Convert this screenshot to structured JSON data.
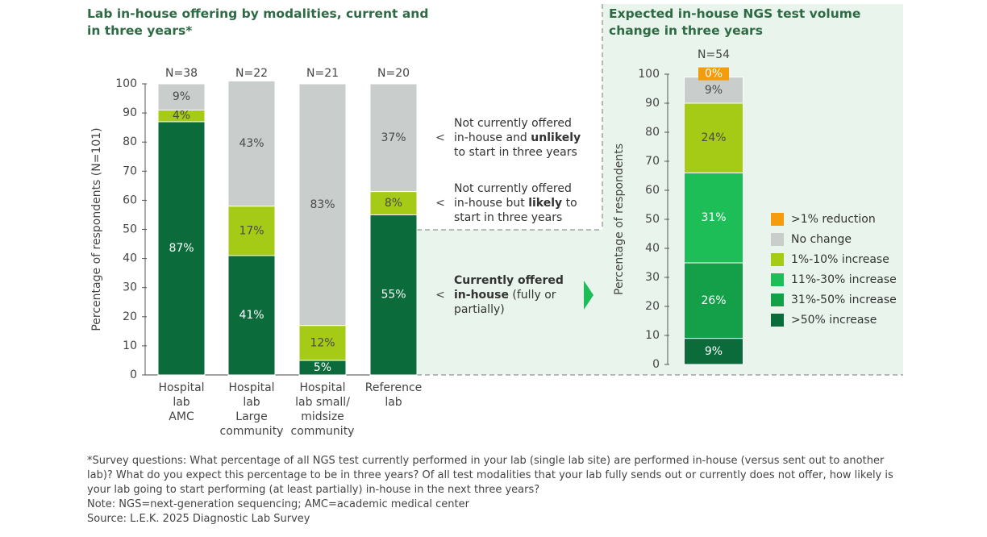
{
  "chart_data": [
    {
      "type": "stacked_bar",
      "title": "Lab in-house offering by modalities, current and in three years*",
      "ylabel": "Percentage of respondents (N=101)",
      "n_labels": [
        "N=38",
        "N=22",
        "N=21",
        "N=20"
      ],
      "categories": [
        [
          "Hospital",
          "lab",
          "AMC"
        ],
        [
          "Hospital",
          "lab",
          "Large",
          "community"
        ],
        [
          "Hospital",
          "lab small/",
          "midsize",
          "community"
        ],
        [
          "Reference",
          "lab"
        ]
      ],
      "ylim": [
        0,
        100
      ],
      "yticks": [
        0,
        10,
        20,
        30,
        40,
        50,
        60,
        70,
        80,
        90,
        100
      ],
      "series": [
        {
          "color": "#0b6b3a",
          "label_color": "#ffffff",
          "values": [
            87,
            41,
            5,
            55
          ],
          "value_labels": [
            "87%",
            "41%",
            "5%",
            "55%"
          ],
          "label_lines": [
            [
              {
                "text": "Currently offered",
                "bold": true
              }
            ],
            [
              {
                "text": "in-house",
                "bold": true
              },
              {
                "text": " (fully or"
              }
            ],
            [
              {
                "text": "partially)"
              }
            ]
          ]
        },
        {
          "color": "#a6cb17",
          "label_color": "#4a4a4a",
          "values": [
            4,
            17,
            12,
            8
          ],
          "value_labels": [
            "4%",
            "17%",
            "12%",
            "8%"
          ],
          "label_lines": [
            [
              {
                "text": "Not currently offered"
              }
            ],
            [
              {
                "text": "in-house but "
              },
              {
                "text": "likely",
                "bold": true
              },
              {
                "text": " to"
              }
            ],
            [
              {
                "text": "start in three years"
              }
            ]
          ]
        },
        {
          "color": "#c9cdcc",
          "label_color": "#4a4a4a",
          "values": [
            9,
            43,
            83,
            37
          ],
          "value_labels": [
            "9%",
            "43%",
            "83%",
            "37%"
          ],
          "label_lines": [
            [
              {
                "text": "Not currently offered"
              }
            ],
            [
              {
                "text": "in-house and "
              },
              {
                "text": "unlikely",
                "bold": true
              }
            ],
            [
              {
                "text": "to start in three years"
              }
            ]
          ]
        }
      ]
    },
    {
      "type": "stacked_bar",
      "title": "Expected in-house NGS test volume change in three years",
      "ylabel": "Percentage of respondents",
      "n_labels": [
        "N=54"
      ],
      "categories": [
        null
      ],
      "ylim": [
        0,
        100
      ],
      "yticks": [
        0,
        10,
        20,
        30,
        40,
        50,
        60,
        70,
        80,
        90,
        100
      ],
      "series": [
        {
          "name": ">50% increase",
          "color": "#0b6b3a",
          "label_color": "#ffffff",
          "values": [
            9
          ],
          "value_labels": [
            "9%"
          ]
        },
        {
          "name": "31%-50% increase",
          "color": "#14a049",
          "label_color": "#ffffff",
          "values": [
            26
          ],
          "value_labels": [
            "26%"
          ]
        },
        {
          "name": "11%-30% increase",
          "color": "#1dbe58",
          "label_color": "#ffffff",
          "values": [
            31
          ],
          "value_labels": [
            "31%"
          ]
        },
        {
          "name": "1%-10% increase",
          "color": "#a6cb17",
          "label_color": "#4a4a4a",
          "values": [
            24
          ],
          "value_labels": [
            "24%"
          ]
        },
        {
          "name": "No change",
          "color": "#c9cdcc",
          "label_color": "#4a4a4a",
          "values": [
            9
          ],
          "value_labels": [
            "9%"
          ]
        },
        {
          "name": ">1% reduction",
          "color": "#f59c0d",
          "label_color": "#ffffff",
          "values": [
            0
          ],
          "value_labels": [
            "0%"
          ]
        }
      ]
    }
  ],
  "footnotes": [
    "*Survey questions: What percentage of all NGS test currently performed in your lab (single lab site) are performed in-house (versus sent out to another lab)? What do you expect this percentage to be in three years? Of all test modalities that your lab fully sends out or currently does not offer, how likely is your lab going to start performing (at least partially) in-house in the next three years?",
    "Note: NGS=next-generation sequencing; AMC=academic medical center",
    "Source: L.E.K. 2025 Diagnostic Lab Survey"
  ]
}
